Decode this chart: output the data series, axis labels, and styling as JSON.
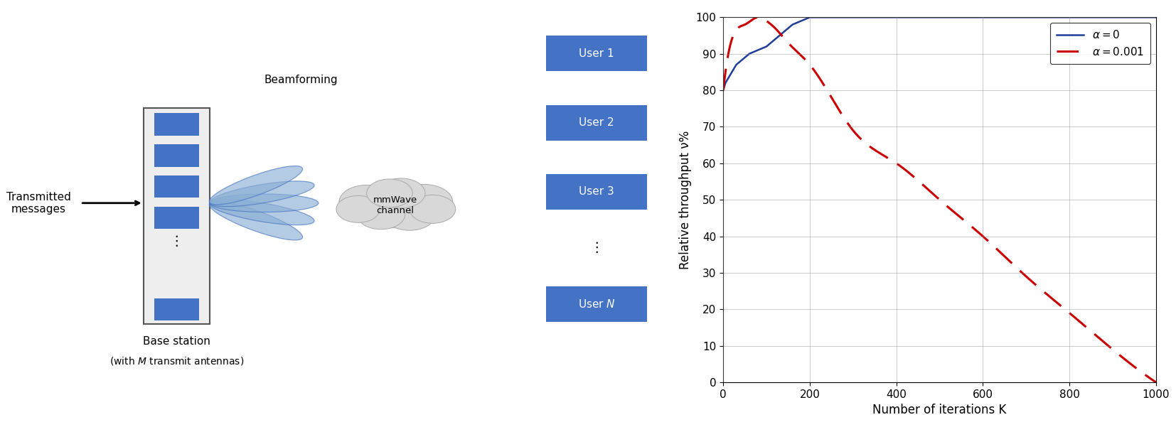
{
  "ylabel": "Relative throughput ν%",
  "xlabel": "Number of iterations K",
  "xlim": [
    0,
    1000
  ],
  "ylim": [
    0,
    100
  ],
  "xticks": [
    0,
    200,
    400,
    600,
    800,
    1000
  ],
  "yticks": [
    0,
    10,
    20,
    30,
    40,
    50,
    60,
    70,
    80,
    90,
    100
  ],
  "line1_color": "#1F3D99",
  "line2_color": "#CC0000",
  "grid_color": "#888888",
  "box_color": "#4472C4",
  "box_text_color": "#FFFFFF",
  "bg_color": "#FFFFFF",
  "beam_fill": "#8AAFD4",
  "beam_edge": "#4472C4",
  "cloud_fill": "#D8D8D8",
  "cloud_edge": "#AAAAAA",
  "bs_fill": "#EEEEEE",
  "bs_edge": "#555555"
}
